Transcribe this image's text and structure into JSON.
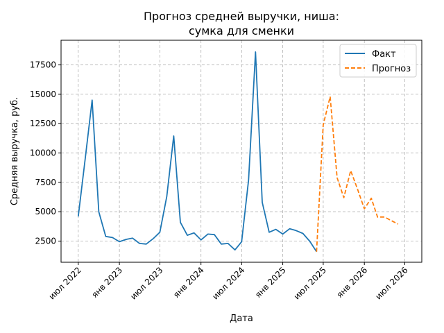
{
  "chart_data": {
    "type": "line",
    "title_line1": "Прогноз средней выручки, ниша:",
    "title_line2": "сумка для сменки",
    "xlabel": "Дата",
    "ylabel": "Средняя выручка, руб.",
    "ylim": [
      700,
      19600
    ],
    "y_ticks": [
      2500,
      5000,
      7500,
      10000,
      12500,
      15000,
      17500
    ],
    "y_tick_labels": [
      "2500",
      "5000",
      "7500",
      "10000",
      "12500",
      "15000",
      "17500"
    ],
    "x_ticks": [
      "2022-07",
      "2023-01",
      "2023-07",
      "2024-01",
      "2024-07",
      "2025-01",
      "2025-07",
      "2026-01",
      "2026-07"
    ],
    "x_tick_labels": [
      "июл 2022",
      "янв 2023",
      "июл 2023",
      "янв 2024",
      "июл 2024",
      "янв 2025",
      "июл 2025",
      "янв 2026",
      "июл 2026"
    ],
    "x_range": [
      "2022-04-15",
      "2026-09-15"
    ],
    "grid": true,
    "legend_position": "top-right",
    "series": [
      {
        "name": "Факт",
        "color": "#1f77b4",
        "style": "solid",
        "x": [
          "2022-07",
          "2022-08",
          "2022-09",
          "2022-10",
          "2022-11",
          "2022-12",
          "2023-01",
          "2023-02",
          "2023-03",
          "2023-04",
          "2023-05",
          "2023-06",
          "2023-07",
          "2023-08",
          "2023-09",
          "2023-10",
          "2023-11",
          "2023-12",
          "2024-01",
          "2024-02",
          "2024-03",
          "2024-04",
          "2024-05",
          "2024-06",
          "2024-07",
          "2024-08",
          "2024-09",
          "2024-10",
          "2024-11",
          "2024-12",
          "2025-01",
          "2025-02",
          "2025-03",
          "2025-04",
          "2025-05",
          "2025-06"
        ],
        "values": [
          4600,
          9500,
          14500,
          5000,
          2900,
          2800,
          2450,
          2650,
          2750,
          2300,
          2250,
          2700,
          3250,
          6300,
          11450,
          4100,
          3000,
          3200,
          2600,
          3100,
          3050,
          2250,
          2300,
          1750,
          2450,
          7700,
          18600,
          5800,
          3250,
          3500,
          3100,
          3550,
          3400,
          3150,
          2500,
          1600
        ]
      },
      {
        "name": "Прогноз",
        "color": "#ff7f0e",
        "style": "dashed",
        "x": [
          "2025-06",
          "2025-07",
          "2025-08",
          "2025-09",
          "2025-10",
          "2025-11",
          "2025-12",
          "2026-01",
          "2026-02",
          "2026-03",
          "2026-04",
          "2026-05",
          "2026-06"
        ],
        "values": [
          1600,
          12400,
          14800,
          7900,
          6200,
          8500,
          6950,
          5250,
          6150,
          4550,
          4550,
          4250,
          3950
        ]
      }
    ]
  }
}
